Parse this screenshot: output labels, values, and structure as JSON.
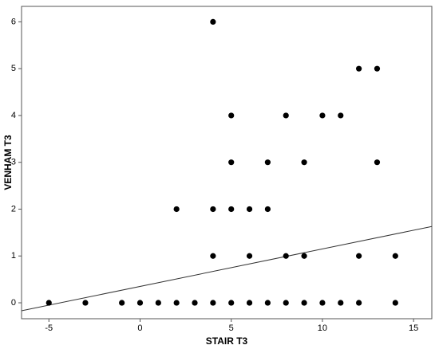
{
  "chart_data": {
    "type": "scatter",
    "x_label": "STAIR T3",
    "y_label": "VENHAM T3",
    "series": [
      {
        "color": "#000000",
        "x": [
          -5,
          -3,
          -1,
          0,
          1,
          2,
          3,
          4,
          5,
          6,
          7,
          8,
          9,
          10,
          11,
          12,
          14,
          4,
          6,
          8,
          9,
          12,
          14,
          2,
          4,
          5,
          6,
          7,
          5,
          7,
          9,
          13,
          5,
          8,
          10,
          11,
          12,
          13,
          4
        ],
        "values": [
          0,
          0,
          0,
          0,
          0,
          0,
          0,
          0,
          0,
          0,
          0,
          0,
          0,
          0,
          0,
          0,
          0,
          1,
          1,
          1,
          1,
          1,
          1,
          2,
          2,
          2,
          2,
          2,
          3,
          3,
          3,
          3,
          4,
          4,
          4,
          4,
          5,
          5,
          6
        ]
      }
    ],
    "fit_line": {
      "x": [
        -6.5,
        16
      ],
      "values": [
        -0.17,
        1.63
      ],
      "color": "#333333"
    },
    "xlim": [
      -6.5,
      16
    ],
    "ylim": [
      -0.34,
      6.33
    ],
    "xticks": [
      -5,
      0,
      5,
      10,
      15
    ],
    "yticks": [
      0,
      1,
      2,
      3,
      4,
      5,
      6
    ],
    "grid": false
  }
}
